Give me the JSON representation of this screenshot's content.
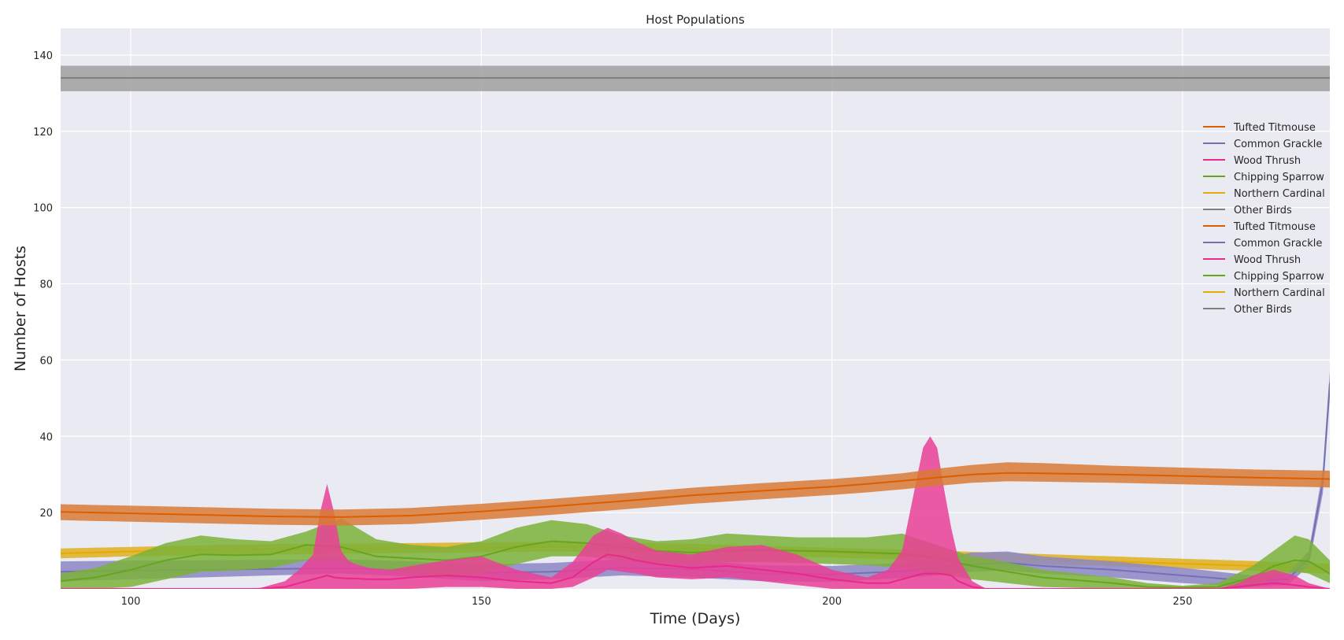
{
  "chart_data": {
    "type": "area",
    "title": "Host Populations",
    "xlabel": "Time (Days)",
    "ylabel": "Number of Hosts",
    "xlim": [
      90,
      271
    ],
    "ylim": [
      0,
      147
    ],
    "xticks": [
      100,
      150,
      200,
      250
    ],
    "yticks": [
      20,
      40,
      60,
      80,
      100,
      120,
      140
    ],
    "grid": true,
    "legend_position": "right",
    "legend": [
      {
        "label": "Tufted Titmouse",
        "color": "#d95f02"
      },
      {
        "label": "Common Grackle",
        "color": "#7570b3"
      },
      {
        "label": "Wood Thrush",
        "color": "#e7298a"
      },
      {
        "label": "Chipping Sparrow",
        "color": "#66a61e"
      },
      {
        "label": "Northern Cardinal",
        "color": "#e6ab02"
      },
      {
        "label": "Other Birds",
        "color": "#808080"
      },
      {
        "label": "Tufted Titmouse",
        "color": "#d95f02"
      },
      {
        "label": "Common Grackle",
        "color": "#7570b3"
      },
      {
        "label": "Wood Thrush",
        "color": "#e7298a"
      },
      {
        "label": "Chipping Sparrow",
        "color": "#66a61e"
      },
      {
        "label": "Northern Cardinal",
        "color": "#e6ab02"
      },
      {
        "label": "Other Birds",
        "color": "#808080"
      }
    ],
    "series": [
      {
        "name": "Other Birds",
        "color": "#808080",
        "band_color": "#a0a0a0",
        "x": [
          90,
          271
        ],
        "mean": [
          134,
          134
        ],
        "lower": [
          130.5,
          130.5
        ],
        "upper": [
          137.2,
          137.2
        ]
      },
      {
        "name": "Northern Cardinal",
        "color": "#e6ab02",
        "band_color": "#e0b020",
        "x": [
          90,
          100,
          110,
          120,
          130,
          140,
          150,
          160,
          170,
          180,
          190,
          200,
          210,
          220,
          230,
          240,
          250,
          260,
          271
        ],
        "mean": [
          9.3,
          9.8,
          10.2,
          10.4,
          10.5,
          10.6,
          10.8,
          11.0,
          10.8,
          10.5,
          10.0,
          9.5,
          9.0,
          8.4,
          7.8,
          7.2,
          6.6,
          6.0,
          5.3
        ],
        "lower": [
          8.0,
          8.5,
          8.8,
          9.0,
          9.2,
          9.4,
          9.6,
          9.8,
          9.6,
          9.2,
          8.7,
          8.2,
          7.7,
          7.1,
          6.5,
          5.9,
          5.3,
          4.7,
          4.0
        ],
        "upper": [
          10.6,
          11.0,
          11.4,
          11.7,
          11.9,
          12.0,
          12.2,
          12.3,
          12.1,
          11.8,
          11.3,
          10.8,
          10.3,
          9.7,
          9.1,
          8.5,
          7.9,
          7.3,
          6.6
        ]
      },
      {
        "name": "Common Grackle",
        "color": "#7570b3",
        "band_color": "#8c87c4",
        "x": [
          90,
          100,
          110,
          120,
          130,
          140,
          150,
          160,
          170,
          180,
          190,
          200,
          210,
          215,
          220,
          225,
          230,
          240,
          250,
          260,
          265,
          268,
          270,
          271
        ],
        "mean": [
          4.5,
          4.8,
          5.0,
          5.2,
          5.4,
          5.0,
          4.2,
          4.5,
          5.5,
          5.2,
          4.0,
          3.8,
          4.6,
          5.5,
          6.5,
          6.8,
          6.0,
          5.0,
          3.5,
          2.0,
          2.5,
          8.0,
          28.0,
          54.0
        ],
        "lower": [
          2.0,
          2.5,
          3.0,
          3.5,
          4.0,
          3.2,
          2.0,
          2.5,
          3.5,
          3.0,
          2.0,
          1.8,
          2.8,
          3.5,
          4.5,
          4.8,
          4.0,
          3.0,
          1.5,
          0.5,
          1.0,
          6.0,
          25.0,
          50.0
        ],
        "upper": [
          7.2,
          7.4,
          7.5,
          7.6,
          7.8,
          7.2,
          6.5,
          6.8,
          7.8,
          7.5,
          6.2,
          6.0,
          6.8,
          8.0,
          9.5,
          9.8,
          8.5,
          7.2,
          5.5,
          3.5,
          4.0,
          10.0,
          31.0,
          57.0
        ]
      },
      {
        "name": "Chipping Sparrow",
        "color": "#66a61e",
        "band_color": "#7bb13a",
        "x": [
          90,
          95,
          100,
          105,
          110,
          115,
          120,
          125,
          130,
          135,
          140,
          145,
          150,
          155,
          160,
          165,
          170,
          175,
          180,
          185,
          190,
          195,
          200,
          205,
          210,
          215,
          220,
          225,
          230,
          240,
          245,
          250,
          255,
          260,
          263,
          266,
          268,
          271
        ],
        "mean": [
          2.0,
          3.0,
          5.0,
          7.5,
          9.0,
          8.8,
          9.0,
          11.5,
          11.0,
          8.5,
          8.0,
          7.5,
          8.5,
          11.0,
          12.5,
          12.0,
          11.0,
          10.0,
          9.5,
          10.0,
          10.2,
          10.0,
          9.8,
          9.5,
          9.2,
          8.0,
          6.0,
          4.5,
          3.0,
          1.5,
          0.5,
          0.3,
          0.5,
          3.0,
          6.0,
          7.5,
          7.2,
          4.0
        ],
        "lower": [
          0.0,
          0.0,
          0.5,
          2.5,
          4.5,
          4.8,
          5.5,
          7.5,
          7.5,
          5.0,
          4.0,
          3.0,
          4.0,
          6.5,
          8.5,
          8.5,
          7.5,
          6.8,
          6.5,
          7.0,
          7.0,
          6.8,
          6.5,
          6.2,
          5.5,
          4.0,
          2.5,
          1.5,
          0.5,
          0.0,
          0.0,
          0.0,
          0.0,
          0.5,
          3.0,
          4.5,
          4.0,
          1.5
        ],
        "upper": [
          4.0,
          5.5,
          8.5,
          12.0,
          14.0,
          13.0,
          12.5,
          15.0,
          18.5,
          13.0,
          11.5,
          11.0,
          12.5,
          16.0,
          18.0,
          17.0,
          14.0,
          12.5,
          13.0,
          14.5,
          14.0,
          13.5,
          13.5,
          13.5,
          14.5,
          11.5,
          8.5,
          7.0,
          5.0,
          3.0,
          1.5,
          0.8,
          1.5,
          6.0,
          10.0,
          14.0,
          13.0,
          7.5
        ]
      },
      {
        "name": "Wood Thrush",
        "color": "#e7298a",
        "band_color": "#ea3f96",
        "x": [
          90,
          110,
          118,
          122,
          124,
          126,
          127,
          128,
          129,
          130,
          131,
          132,
          134,
          137,
          140,
          145,
          150,
          155,
          160,
          163,
          166,
          168,
          170,
          172,
          175,
          180,
          185,
          190,
          195,
          200,
          205,
          208,
          210,
          212,
          213,
          214,
          215,
          216,
          217,
          218,
          220,
          222,
          225,
          230,
          240,
          250,
          255,
          258,
          260,
          263,
          266,
          268,
          271
        ],
        "mean": [
          0.0,
          0.0,
          0.0,
          0.5,
          1.5,
          2.5,
          3.0,
          3.5,
          3.0,
          2.8,
          2.7,
          2.7,
          2.5,
          2.5,
          3.0,
          3.5,
          3.0,
          2.0,
          1.5,
          3.0,
          7.0,
          9.0,
          8.5,
          7.5,
          6.5,
          5.5,
          6.0,
          5.0,
          4.0,
          2.5,
          1.5,
          1.5,
          2.5,
          3.5,
          4.0,
          4.0,
          4.0,
          3.8,
          3.5,
          2.0,
          0.5,
          0.0,
          0.0,
          0.0,
          0.0,
          0.0,
          0.0,
          0.5,
          1.0,
          1.5,
          1.0,
          0.5,
          0.0
        ],
        "lower": [
          0.0,
          0.0,
          0.0,
          0.0,
          0.0,
          0.0,
          0.0,
          0.0,
          0.0,
          0.0,
          0.0,
          0.0,
          0.0,
          0.0,
          0.0,
          0.5,
          0.5,
          0.0,
          0.0,
          0.5,
          3.0,
          5.0,
          4.5,
          4.0,
          3.0,
          2.5,
          3.0,
          2.0,
          1.0,
          0.0,
          0.0,
          0.0,
          0.0,
          0.0,
          0.0,
          0.0,
          0.0,
          0.0,
          0.0,
          0.0,
          0.0,
          0.0,
          0.0,
          0.0,
          0.0,
          0.0,
          0.0,
          0.0,
          0.0,
          0.0,
          0.0,
          0.0,
          0.0
        ],
        "upper": [
          0.0,
          0.0,
          0.0,
          2.0,
          5.0,
          9.0,
          20.0,
          27.5,
          20.0,
          10.0,
          7.5,
          6.5,
          5.5,
          5.0,
          6.0,
          7.5,
          8.5,
          5.0,
          3.0,
          7.0,
          14.0,
          16.0,
          14.5,
          12.5,
          10.0,
          9.0,
          11.0,
          11.5,
          9.0,
          5.0,
          3.0,
          5.0,
          10.0,
          28.0,
          37.0,
          40.0,
          37.0,
          26.0,
          16.0,
          8.0,
          2.0,
          0.0,
          0.0,
          0.0,
          0.0,
          0.0,
          0.0,
          1.5,
          3.5,
          5.0,
          3.5,
          1.5,
          0.0
        ]
      },
      {
        "name": "Tufted Titmouse",
        "color": "#d95f02",
        "band_color": "#d97a36",
        "x": [
          90,
          100,
          110,
          120,
          130,
          140,
          150,
          160,
          170,
          180,
          190,
          200,
          205,
          210,
          215,
          220,
          225,
          230,
          240,
          250,
          260,
          271
        ],
        "mean": [
          20.2,
          19.8,
          19.4,
          19.0,
          18.8,
          19.2,
          20.3,
          21.6,
          23.0,
          24.5,
          25.7,
          26.8,
          27.5,
          28.3,
          29.2,
          30.0,
          30.4,
          30.3,
          30.0,
          29.6,
          29.2,
          28.8
        ],
        "lower": [
          18.0,
          17.6,
          17.2,
          16.8,
          16.6,
          17.0,
          18.1,
          19.4,
          20.8,
          22.3,
          23.5,
          24.6,
          25.3,
          26.1,
          27.0,
          27.8,
          28.2,
          28.1,
          27.8,
          27.4,
          27.0,
          26.6
        ],
        "upper": [
          22.2,
          21.8,
          21.4,
          21.0,
          20.8,
          21.2,
          22.3,
          23.6,
          25.0,
          26.5,
          27.7,
          28.8,
          29.5,
          30.3,
          31.5,
          32.5,
          33.2,
          33.0,
          32.3,
          31.8,
          31.3,
          31.0
        ]
      }
    ]
  }
}
